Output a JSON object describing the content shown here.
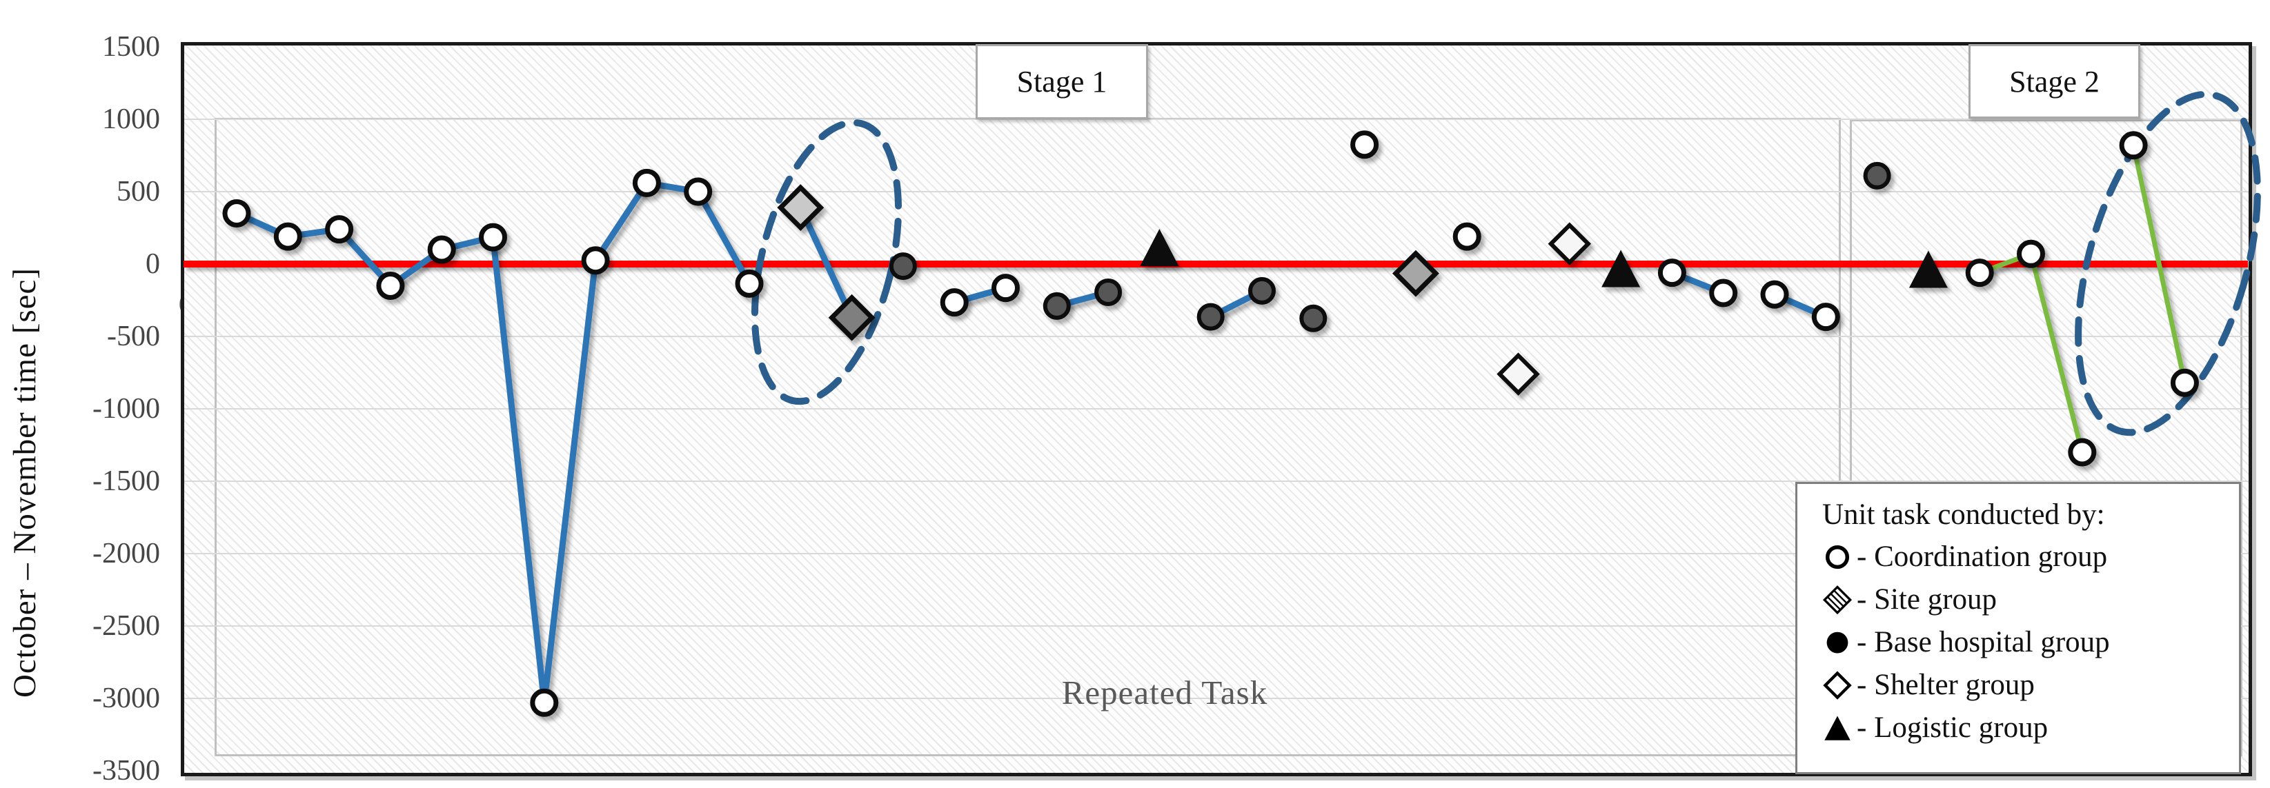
{
  "colors": {
    "red_zero_line": "#FF0000",
    "blue_connector": "#2E74B5",
    "green_connector": "#7CBB42",
    "ellipse_dash": "#2B5E8C",
    "grid_line": "#D9D9D9",
    "stage_box_border": "#C0C0C0",
    "marker_outline": "#0A0A0A",
    "hospital_fill": "#575757",
    "coordination_fill": "#FFFFFF",
    "shelter_fill": "#F6F6F6",
    "logistic_fill": "#0B0B0B",
    "site_default_fill": "#ABABAB"
  },
  "axis": {
    "title": "October – November time [sec]",
    "ticks": [
      1500,
      1000,
      500,
      0,
      -500,
      -1000,
      -1500,
      -2000,
      -2500,
      -3000,
      -3500
    ],
    "stray_zero_label": "0"
  },
  "annotations": {
    "stage1_label": "Stage 1",
    "stage2_label": "Stage 2",
    "repeated_task_label": "Repeated Task"
  },
  "legend": {
    "title": "Unit task conducted by:",
    "items": [
      {
        "marker": "coordination-circle-icon",
        "label": "- Coordination group"
      },
      {
        "marker": "site-hatched-diamond-icon",
        "label": "- Site group"
      },
      {
        "marker": "base-hospital-filled-circle-icon",
        "label": "- Base hospital group"
      },
      {
        "marker": "shelter-diamond-icon",
        "label": "- Shelter group"
      },
      {
        "marker": "logistic-triangle-icon",
        "label": "- Logistic group"
      }
    ]
  },
  "chart_data": {
    "type": "scatter",
    "ylabel": "October – November time [sec]",
    "ylim": [
      -3500,
      1500
    ],
    "y_tick_step": 500,
    "zero_reference_line": 0,
    "x_axis": "unit task sequence (39 consecutive unit tasks, no x tick labels)",
    "grid": true,
    "legend_position": "bottom-right",
    "stages": [
      {
        "label": "Stage 1",
        "task_range": [
          1,
          32
        ]
      },
      {
        "label": "Stage 2",
        "task_range": [
          33,
          39
        ]
      }
    ],
    "points": [
      {
        "task": 1,
        "group": "coordination",
        "value": 350
      },
      {
        "task": 2,
        "group": "coordination",
        "value": 190
      },
      {
        "task": 3,
        "group": "coordination",
        "value": 240
      },
      {
        "task": 4,
        "group": "coordination",
        "value": -150
      },
      {
        "task": 5,
        "group": "coordination",
        "value": 100
      },
      {
        "task": 6,
        "group": "coordination",
        "value": 185
      },
      {
        "task": 7,
        "group": "coordination",
        "value": -3030
      },
      {
        "task": 8,
        "group": "coordination",
        "value": 25
      },
      {
        "task": 9,
        "group": "coordination",
        "value": 560
      },
      {
        "task": 10,
        "group": "coordination",
        "value": 500
      },
      {
        "task": 11,
        "group": "coordination",
        "value": -135
      },
      {
        "task": 12,
        "group": "site",
        "value": 390,
        "fill": "#C9C9C9"
      },
      {
        "task": 13,
        "group": "site",
        "value": -370,
        "fill": "#7F7F7F"
      },
      {
        "task": 14,
        "group": "hospital",
        "value": -15
      },
      {
        "task": 15,
        "group": "coordination",
        "value": -265
      },
      {
        "task": 16,
        "group": "coordination",
        "value": -165
      },
      {
        "task": 17,
        "group": "hospital",
        "value": -290
      },
      {
        "task": 18,
        "group": "hospital",
        "value": -195
      },
      {
        "task": 19,
        "group": "logistic",
        "value": 100
      },
      {
        "task": 20,
        "group": "hospital",
        "value": -365
      },
      {
        "task": 21,
        "group": "hospital",
        "value": -185
      },
      {
        "task": 22,
        "group": "hospital",
        "value": -375
      },
      {
        "task": 23,
        "group": "coordination",
        "value": 825
      },
      {
        "task": 24,
        "group": "site",
        "value": -65,
        "fill": "#A6A6A6"
      },
      {
        "task": 25,
        "group": "coordination",
        "value": 190
      },
      {
        "task": 26,
        "group": "shelter",
        "value": -760
      },
      {
        "task": 27,
        "group": "shelter",
        "value": 140
      },
      {
        "task": 28,
        "group": "logistic",
        "value": -45
      },
      {
        "task": 29,
        "group": "coordination",
        "value": -60
      },
      {
        "task": 30,
        "group": "coordination",
        "value": -200
      },
      {
        "task": 31,
        "group": "coordination",
        "value": -210
      },
      {
        "task": 32,
        "group": "coordination",
        "value": -365
      },
      {
        "task": 33,
        "group": "hospital",
        "value": 610
      },
      {
        "task": 34,
        "group": "logistic",
        "value": -50
      },
      {
        "task": 35,
        "group": "coordination",
        "value": -60
      },
      {
        "task": 36,
        "group": "coordination",
        "value": 70
      },
      {
        "task": 37,
        "group": "coordination",
        "value": -1300
      },
      {
        "task": 38,
        "group": "coordination",
        "value": 820
      },
      {
        "task": 39,
        "group": "coordination",
        "value": -820
      }
    ],
    "connections": [
      {
        "color": "blue",
        "tasks": [
          1,
          2,
          3,
          4,
          5,
          6,
          7,
          8,
          9,
          10,
          11
        ]
      },
      {
        "color": "blue",
        "tasks": [
          12,
          13
        ]
      },
      {
        "color": "blue",
        "tasks": [
          15,
          16
        ]
      },
      {
        "color": "blue",
        "tasks": [
          17,
          18
        ]
      },
      {
        "color": "blue",
        "tasks": [
          20,
          21
        ]
      },
      {
        "color": "blue",
        "tasks": [
          29,
          30
        ]
      },
      {
        "color": "blue",
        "tasks": [
          31,
          32
        ]
      },
      {
        "color": "green",
        "tasks": [
          35,
          36,
          37
        ]
      },
      {
        "color": "green",
        "tasks": [
          38,
          39
        ]
      }
    ],
    "highlight_ellipses": [
      {
        "around_tasks": [
          12,
          13
        ],
        "cx": 1198,
        "cy": 380,
        "rx": 94,
        "ry": 207,
        "rotate": 14
      },
      {
        "around_tasks": [
          38,
          39
        ],
        "cx": 3142,
        "cy": 382,
        "rx": 114,
        "ry": 253,
        "rotate": 16
      }
    ]
  }
}
